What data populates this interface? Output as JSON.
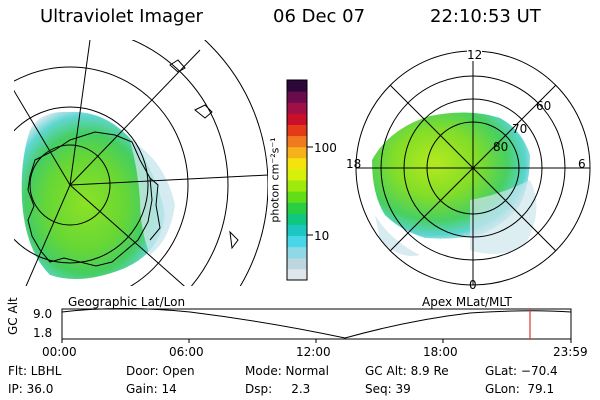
{
  "header": {
    "title": "Ultraviolet Imager",
    "date": "06 Dec 07",
    "time": "22:10:53 UT"
  },
  "left_panel": {
    "caption": "Geographic Lat/Lon"
  },
  "right_panel": {
    "caption": "Apex MLat/MLT",
    "mlt_labels": [
      "12",
      "18",
      "6",
      "0"
    ],
    "lat_labels": [
      "60",
      "70",
      "80"
    ]
  },
  "colorbar": {
    "unit_label": "photon cm⁻²s⁻¹",
    "ticks": [
      "100",
      "10"
    ],
    "colors": [
      "#dde7ec",
      "#bdd6e0",
      "#8fd8e6",
      "#49d6e8",
      "#1cc7c2",
      "#10c77f",
      "#28cf43",
      "#62de18",
      "#9fea0d",
      "#d6f00c",
      "#f5e40c",
      "#f7b11b",
      "#ef7a1f",
      "#e43a1a",
      "#c8102a",
      "#a00f45",
      "#6a0b4e",
      "#2b0838"
    ]
  },
  "timeline": {
    "axis_label": "GC Alt",
    "y_ticks": [
      "9.0",
      "1.8"
    ],
    "x_ticks": [
      "00:00",
      "06:00",
      "12:00",
      "18:00",
      "23:59"
    ]
  },
  "footer": {
    "row1": [
      {
        "label": "Flt: LBHL"
      },
      {
        "label": "Door: Open"
      },
      {
        "label": "Mode: Normal"
      },
      {
        "label": "GC Alt: 8.9 Re"
      },
      {
        "label": "GLat: −70.4"
      }
    ],
    "row2": [
      {
        "label": "IP: 36.0"
      },
      {
        "label": "Gain: 14"
      },
      {
        "label": "Dsp:     2.3"
      },
      {
        "label": "Seq: 39"
      },
      {
        "label": "GLon:  79.1"
      }
    ]
  }
}
